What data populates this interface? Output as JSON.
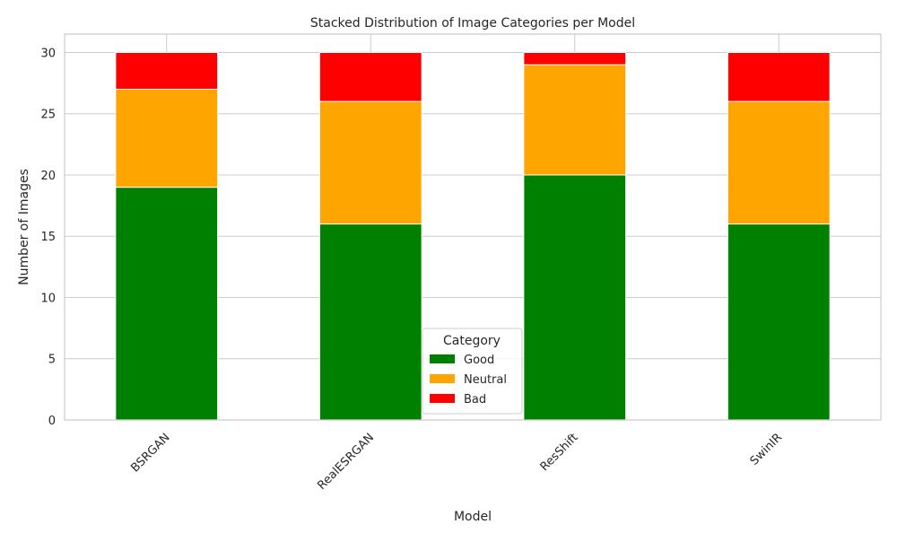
{
  "chart_data": {
    "type": "bar",
    "stacked": true,
    "title": "Stacked Distribution of Image Categories per Model",
    "xlabel": "Model",
    "ylabel": "Number of Images",
    "categories": [
      "BSRGAN",
      "RealESRGAN",
      "ResShift",
      "SwinIR"
    ],
    "series": [
      {
        "name": "Good",
        "color": "#008000",
        "values": [
          19,
          16,
          20,
          16
        ]
      },
      {
        "name": "Neutral",
        "color": "#ffa500",
        "values": [
          8,
          10,
          9,
          10
        ]
      },
      {
        "name": "Bad",
        "color": "#ff0000",
        "values": [
          3,
          4,
          1,
          4
        ]
      }
    ],
    "ylim": [
      0,
      31.5
    ],
    "yticks": [
      0,
      5,
      10,
      15,
      20,
      25,
      30
    ],
    "grid": true,
    "legend": {
      "title": "Category",
      "placement": "lower-center"
    }
  }
}
